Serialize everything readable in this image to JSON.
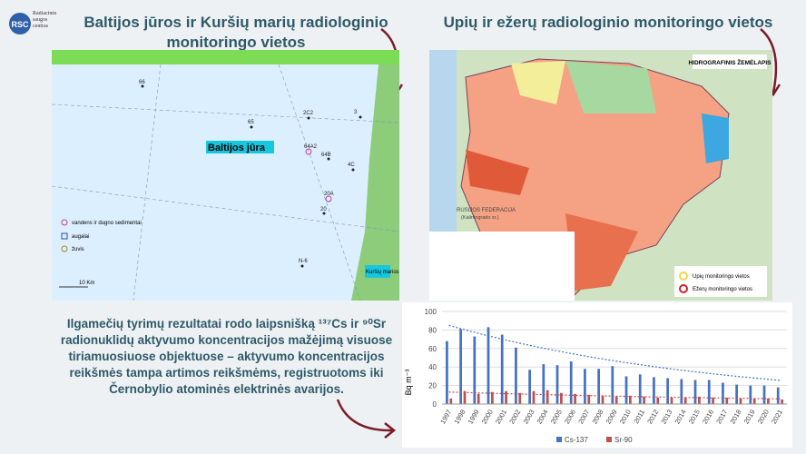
{
  "logo": {
    "abbr": "RSC",
    "name": "Radiacinės saugos centras"
  },
  "left_map": {
    "title": "Baltijos jūros ir Kuršių marių radiologinio monitoringo vietos",
    "sea_label": "Baltijos jūra",
    "stations": [
      "66",
      "65",
      "2C2",
      "64A2",
      "64B",
      "20A",
      "20",
      "N-6",
      "4C",
      "3"
    ],
    "legend": [
      "vandens ir dugno sedimentai",
      "augalai",
      "žuvis"
    ],
    "scale": "10 Km",
    "lagoon": "Kuršių marios"
  },
  "right_map": {
    "title": "Upių ir ežerų radiologinio monitoringo vietos",
    "map_title": "HIDROGRAFINIS ŽEMĖLAPIS",
    "russia": "RUSIJOS FEDERACIJA",
    "russia_sub": "(Kaliningrado sr.)",
    "legend": [
      "Upių monitoringo vietos",
      "Ežerų monitoringo vietos"
    ]
  },
  "paragraph": "Ilgamečių tyrimų rezultatai rodo laipsnišką ¹³⁷Cs ir ⁹⁰Sr radionuklidų aktyvumo koncentracijos mažėjimą visuose tiriamuosiuose objektuose – aktyvumo koncentracijos reikšmės tampa artimos reikšmėms, registruotoms iki Černobylio atominės elektrinės avarijos.",
  "chart_data": {
    "type": "bar",
    "y_label": "Bq m⁻³",
    "categories": [
      "1997",
      "1998",
      "1999",
      "2000",
      "2001",
      "2002",
      "2003",
      "2004",
      "2005",
      "2006",
      "2007",
      "2008",
      "2009",
      "2010",
      "2011",
      "2012",
      "2013",
      "2014",
      "2015",
      "2016",
      "2017",
      "2018",
      "2019",
      "2020",
      "2021"
    ],
    "series": [
      {
        "name": "Cs-137",
        "color": "#4472c4",
        "values": [
          68,
          81,
          73,
          83,
          75,
          61,
          37,
          43,
          42,
          46,
          38,
          38,
          41,
          30,
          32,
          29,
          28,
          27,
          26,
          26,
          23,
          21,
          20,
          20,
          18
        ]
      },
      {
        "name": "Sr-90",
        "color": "#c0504d",
        "values": [
          6,
          14,
          11,
          13,
          14,
          12,
          14,
          15,
          12,
          11,
          10,
          9,
          8,
          9,
          8,
          7,
          7,
          7,
          8,
          7,
          7,
          6,
          6,
          6,
          5
        ]
      }
    ],
    "ylim": [
      0,
      100
    ],
    "yticks": [
      0,
      20,
      40,
      60,
      80,
      100
    ],
    "grid": true
  }
}
